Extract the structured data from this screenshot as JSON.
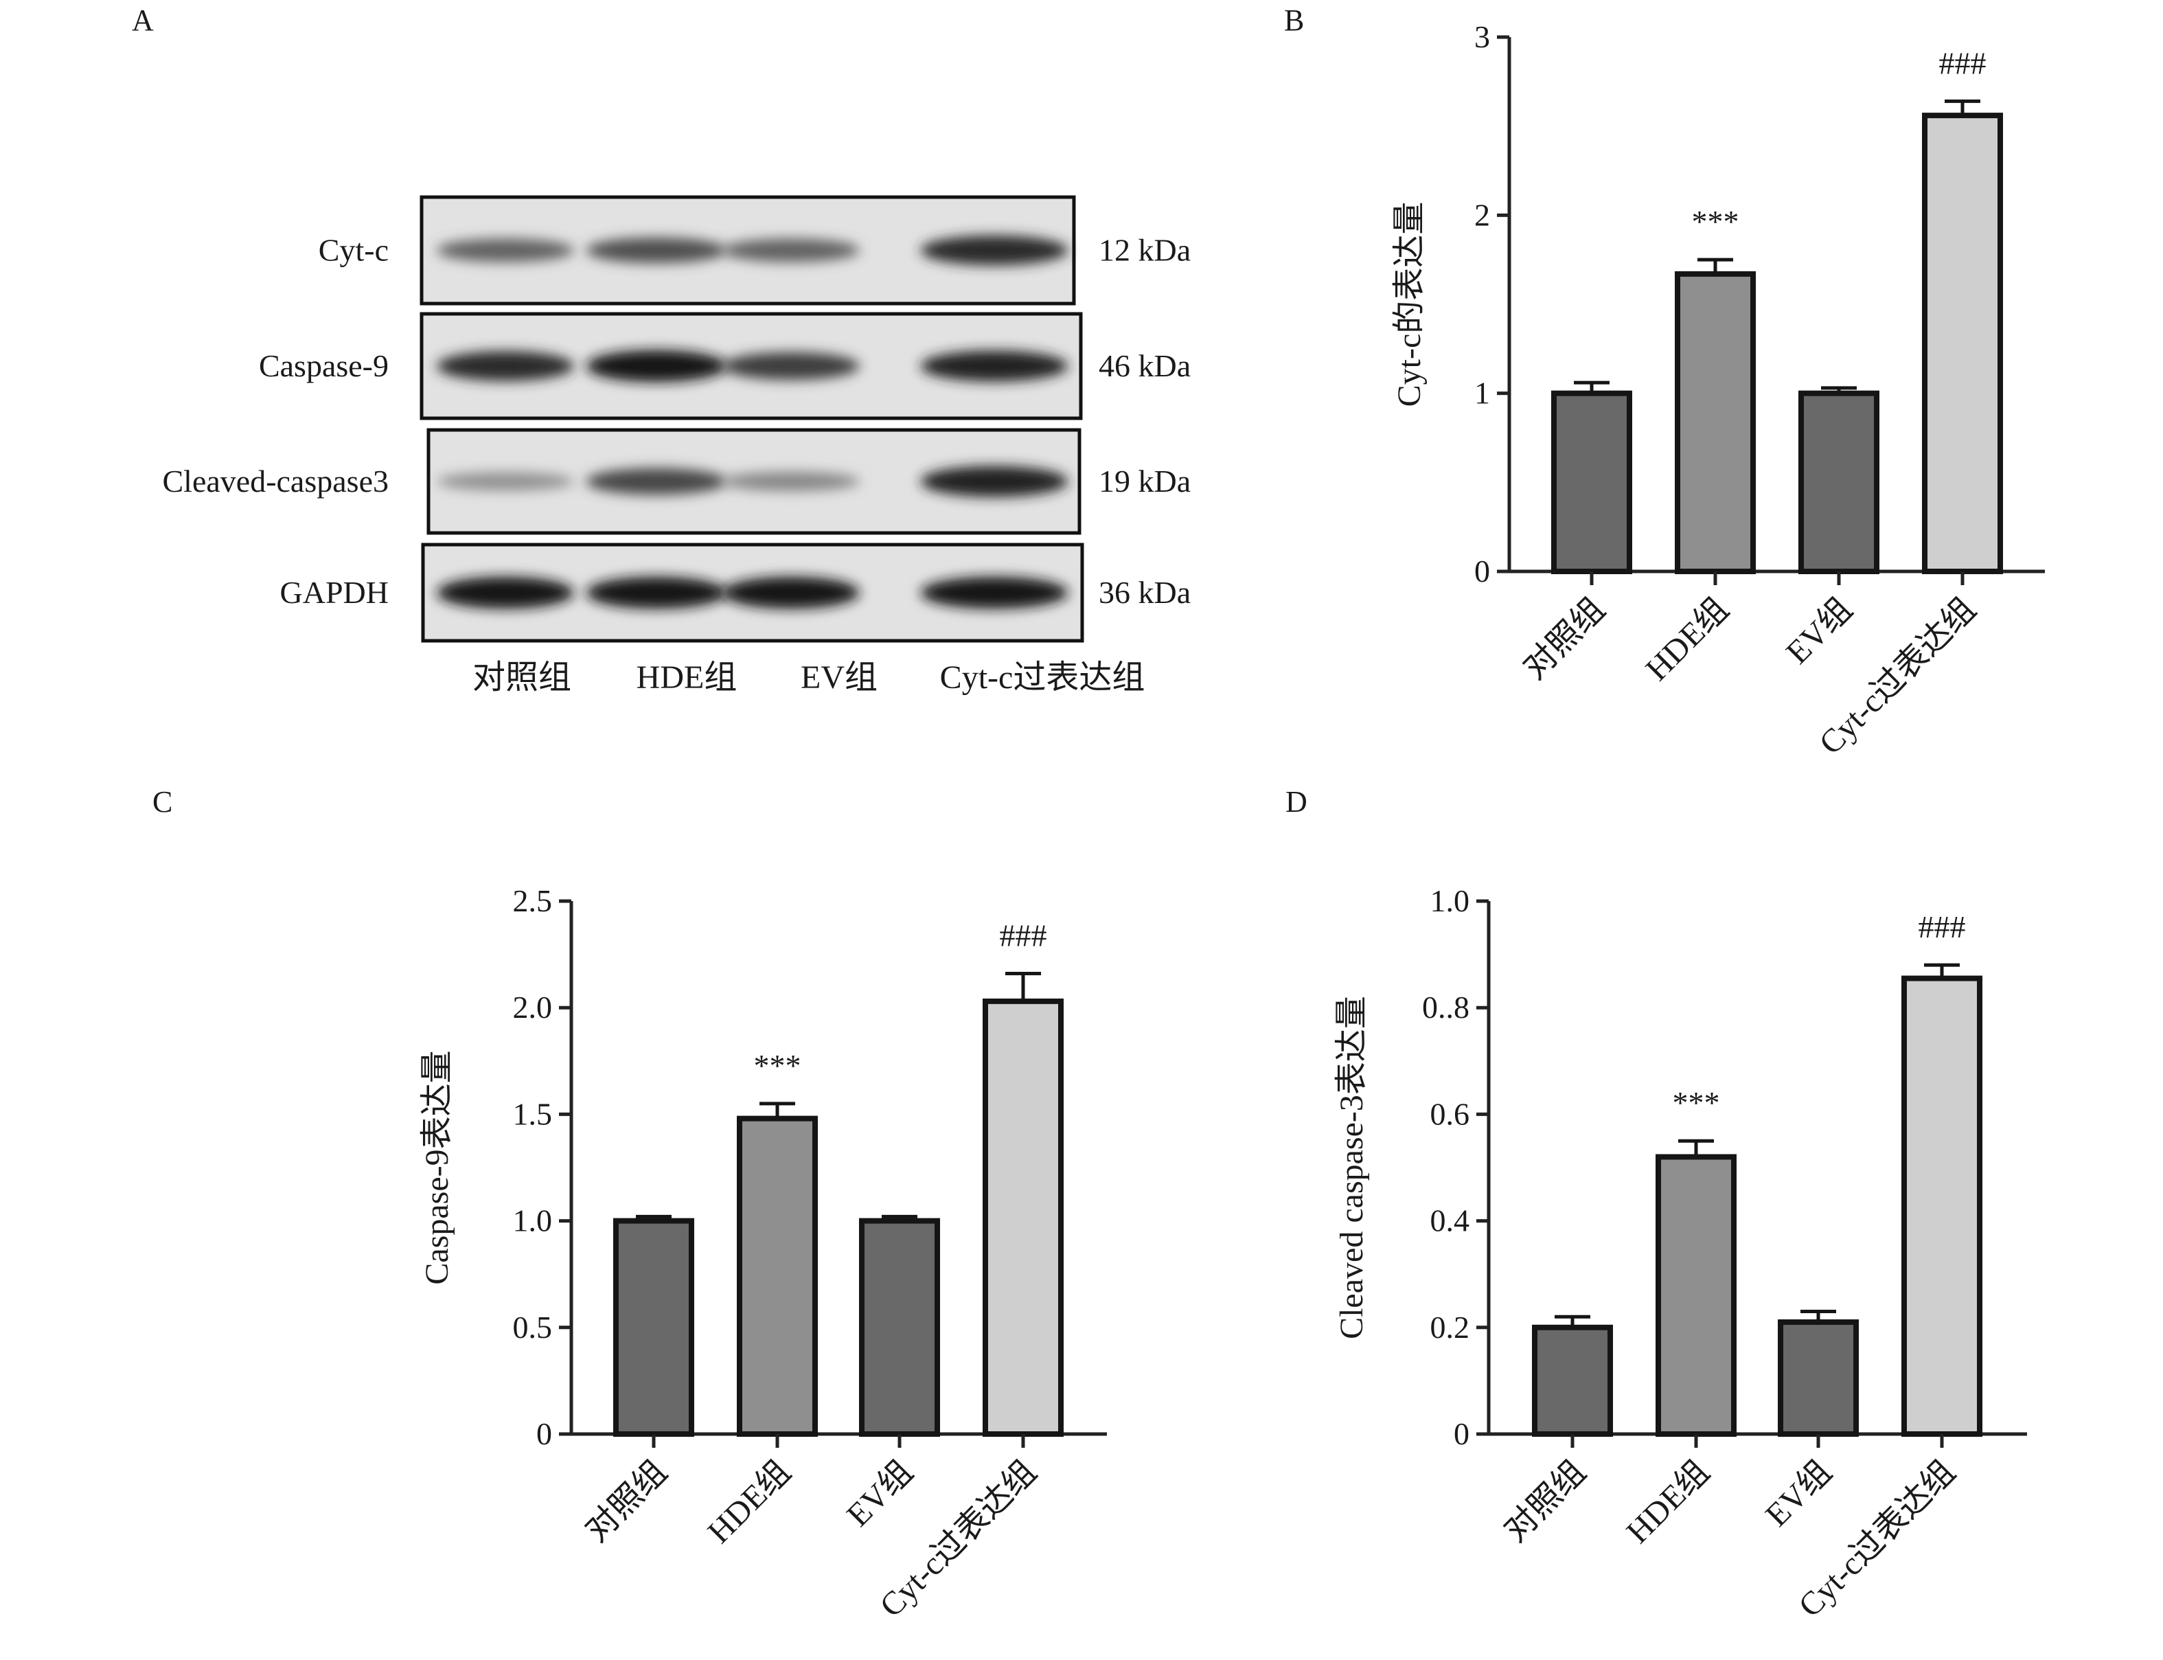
{
  "panel_labels": [
    "A",
    "B",
    "C",
    "D"
  ],
  "blot": {
    "rows": [
      {
        "label": "Cyt-c",
        "size": "12 kDa",
        "intensity": [
          0.55,
          0.65,
          0.55,
          0.85
        ]
      },
      {
        "label": "Caspase-9",
        "size": "46 kDa",
        "intensity": [
          0.85,
          0.95,
          0.75,
          0.9
        ]
      },
      {
        "label": "Cleaved-caspase3",
        "size": "19 kDa",
        "intensity": [
          0.3,
          0.7,
          0.35,
          0.9
        ]
      },
      {
        "label": "GAPDH",
        "size": "36 kDa",
        "intensity": [
          0.95,
          0.95,
          0.95,
          0.95
        ]
      }
    ],
    "lanes": [
      "对照组",
      "HDE组",
      "EV组",
      "Cyt-c过表达组"
    ]
  },
  "chart_data": [
    {
      "type": "bar",
      "panel": "B",
      "categories": [
        "对照组",
        "HDE组",
        "EV组",
        "Cyt-c过表达组"
      ],
      "values": [
        1.0,
        1.67,
        1.0,
        2.56
      ],
      "errors": [
        0.06,
        0.08,
        0.03,
        0.08
      ],
      "annotations": [
        "",
        "***",
        "",
        "###"
      ],
      "colors": [
        "#696969",
        "#8f8f8f",
        "#696969",
        "#cfcfcf"
      ],
      "ylabel": "Cyt-c的表达量",
      "ylim": [
        0,
        3
      ],
      "yticks": [
        0,
        1,
        2,
        3
      ],
      "ytick_labels": [
        "0",
        "1",
        "2",
        "3"
      ]
    },
    {
      "type": "bar",
      "panel": "C",
      "categories": [
        "对照组",
        "HDE组",
        "EV组",
        "Cyt-c过表达组"
      ],
      "values": [
        1.0,
        1.48,
        1.0,
        2.03
      ],
      "errors": [
        0.02,
        0.07,
        0.02,
        0.13
      ],
      "annotations": [
        "",
        "***",
        "",
        "###"
      ],
      "colors": [
        "#696969",
        "#8f8f8f",
        "#696969",
        "#cfcfcf"
      ],
      "ylabel": "Caspase-9表达量",
      "ylim": [
        0,
        2.5
      ],
      "yticks": [
        0,
        0.5,
        1.0,
        1.5,
        2.0,
        2.5
      ],
      "ytick_labels": [
        "0",
        "0.5",
        "1.0",
        "1.5",
        "2.0",
        "2.5"
      ]
    },
    {
      "type": "bar",
      "panel": "D",
      "categories": [
        "对照组",
        "HDE组",
        "EV组",
        "Cyt-c过表达组"
      ],
      "values": [
        0.2,
        0.52,
        0.21,
        0.855
      ],
      "errors": [
        0.02,
        0.03,
        0.02,
        0.025
      ],
      "annotations": [
        "",
        "***",
        "",
        "###"
      ],
      "colors": [
        "#696969",
        "#8f8f8f",
        "#696969",
        "#cfcfcf"
      ],
      "ylabel": "Cleaved caspase-3表达量",
      "ylim": [
        0,
        1.0
      ],
      "yticks": [
        0,
        0.2,
        0.4,
        0.6,
        0.8,
        1.0
      ],
      "ytick_labels": [
        "0",
        "0.2",
        "0.4",
        "0.6",
        "0..8",
        "1.0"
      ]
    }
  ]
}
